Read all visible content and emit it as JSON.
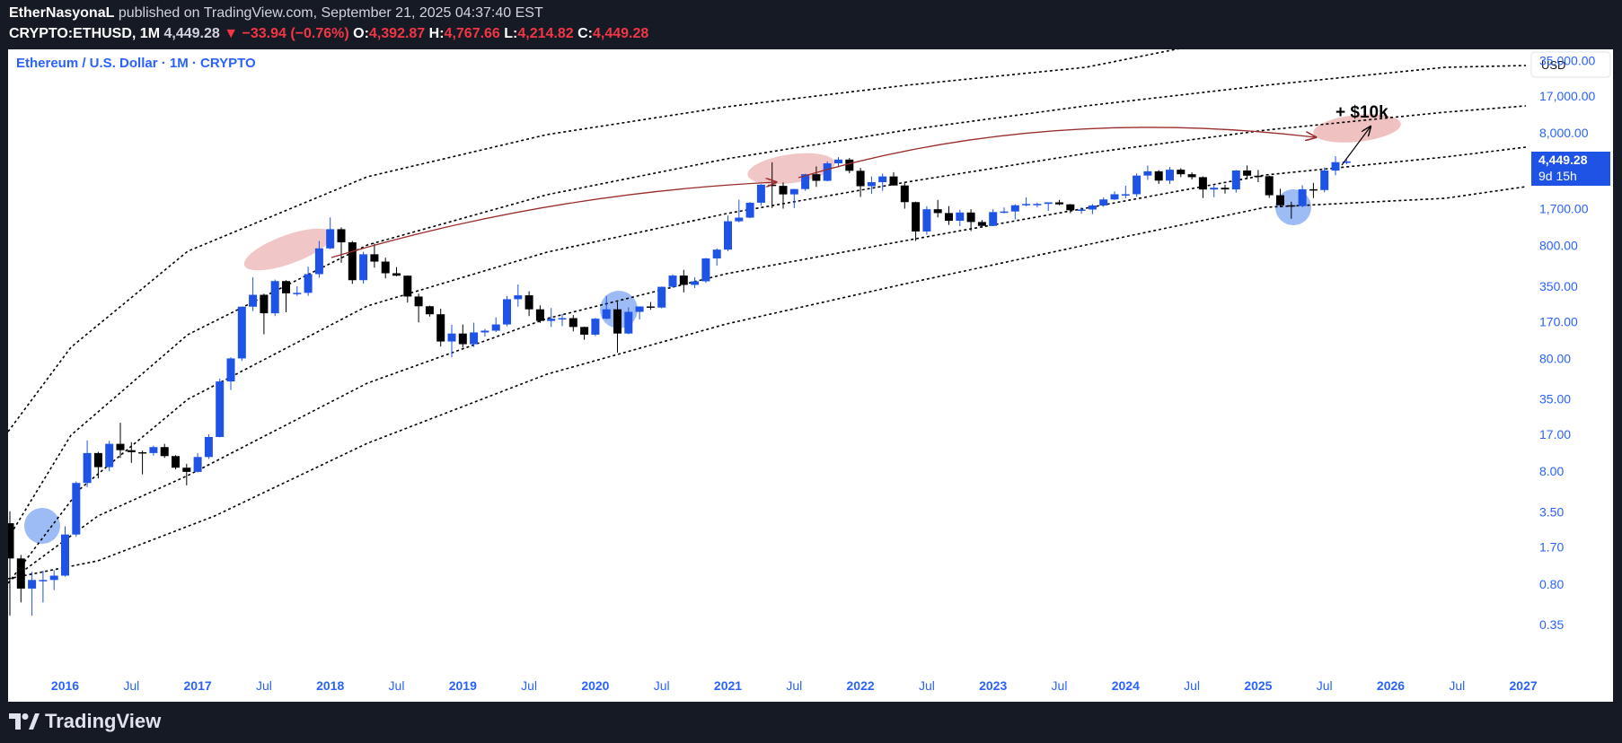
{
  "header": {
    "author": "EtherNasyonaL",
    "published": "published on TradingView.com, September 21, 2025 04:37:40 EST",
    "symbol": "CRYPTO:ETHUSD, 1M",
    "last": "4,449.28",
    "change": "▼ −33.94 (−0.76%)",
    "o_label": "O:",
    "o": "4,392.87",
    "h_label": "H:",
    "h": "4,767.66",
    "l_label": "L:",
    "l": "4,214.82",
    "c_label": "C:",
    "c": "4,449.28"
  },
  "legend_title": "Ethereum / U.S. Dollar · 1M · CRYPTO",
  "currency_button": "USD",
  "price_badge": {
    "price": "4,449.28",
    "countdown": "9d 15h"
  },
  "annotation": "+ $10k",
  "footer": {
    "brand": "TradingView"
  },
  "colors": {
    "up": "#1e53e5",
    "down": "#000000",
    "red_zone": "#e8a0a0",
    "blue_zone": "#5b8def",
    "arc": "#9b2c2c",
    "axis_text": "#2962ff"
  },
  "chart_data": {
    "type": "candlestick",
    "scale": "log",
    "title": "Ethereum / U.S. Dollar · 1M · CRYPTO",
    "y_ticks": [
      "0.35",
      "0.80",
      "1.70",
      "3.50",
      "8.00",
      "17.00",
      "35.00",
      "80.00",
      "170.00",
      "350.00",
      "800.00",
      "1,700.00",
      "4,449.28",
      "8,000.00",
      "17,000.00",
      "35,000.00"
    ],
    "y_tick_values": [
      0.35,
      0.8,
      1.7,
      3.5,
      8,
      17,
      35,
      80,
      170,
      350,
      800,
      1700,
      4449.28,
      8000,
      17000,
      35000
    ],
    "x_ticks": [
      "2016",
      "Jul",
      "2017",
      "Jul",
      "2018",
      "Jul",
      "2019",
      "Jul",
      "2020",
      "Jul",
      "2021",
      "Jul",
      "2022",
      "Jul",
      "2023",
      "Jul",
      "2024",
      "Jul",
      "2025",
      "Jul",
      "2026",
      "Jul",
      "2027"
    ],
    "x_range": [
      "2015-08",
      "2027-01"
    ],
    "last_price": 4449.28,
    "channel_lines": 5,
    "candles": [
      {
        "t": "2015-08",
        "o": 2.77,
        "h": 3.54,
        "l": 0.42,
        "c": 1.35
      },
      {
        "t": "2015-09",
        "o": 1.35,
        "h": 1.45,
        "l": 0.55,
        "c": 0.73
      },
      {
        "t": "2015-10",
        "o": 0.73,
        "h": 1.03,
        "l": 0.42,
        "c": 0.87
      },
      {
        "t": "2015-11",
        "o": 0.87,
        "h": 1.05,
        "l": 0.55,
        "c": 0.87
      },
      {
        "t": "2015-12",
        "o": 0.87,
        "h": 1.06,
        "l": 0.71,
        "c": 0.95
      },
      {
        "t": "2016-01",
        "o": 0.95,
        "h": 2.6,
        "l": 0.93,
        "c": 2.2
      },
      {
        "t": "2016-02",
        "o": 2.2,
        "h": 6.5,
        "l": 2.1,
        "c": 6.3
      },
      {
        "t": "2016-03",
        "o": 6.3,
        "h": 15.0,
        "l": 5.8,
        "c": 11.6
      },
      {
        "t": "2016-04",
        "o": 11.6,
        "h": 11.9,
        "l": 6.9,
        "c": 8.7
      },
      {
        "t": "2016-05",
        "o": 8.7,
        "h": 14.9,
        "l": 8.0,
        "c": 14.0
      },
      {
        "t": "2016-06",
        "o": 14.0,
        "h": 21.5,
        "l": 10.5,
        "c": 12.3
      },
      {
        "t": "2016-07",
        "o": 12.3,
        "h": 14.5,
        "l": 9.5,
        "c": 11.8
      },
      {
        "t": "2016-08",
        "o": 11.8,
        "h": 12.2,
        "l": 7.5,
        "c": 11.6
      },
      {
        "t": "2016-09",
        "o": 11.6,
        "h": 13.5,
        "l": 11.0,
        "c": 13.1
      },
      {
        "t": "2016-10",
        "o": 13.1,
        "h": 14.0,
        "l": 10.5,
        "c": 10.9
      },
      {
        "t": "2016-11",
        "o": 10.9,
        "h": 11.1,
        "l": 8.3,
        "c": 8.6
      },
      {
        "t": "2016-12",
        "o": 8.6,
        "h": 9.3,
        "l": 6.0,
        "c": 7.9
      },
      {
        "t": "2017-01",
        "o": 7.9,
        "h": 11.6,
        "l": 7.8,
        "c": 10.7
      },
      {
        "t": "2017-02",
        "o": 10.7,
        "h": 17.0,
        "l": 10.3,
        "c": 16.1
      },
      {
        "t": "2017-03",
        "o": 16.1,
        "h": 53.0,
        "l": 16.0,
        "c": 50.0
      },
      {
        "t": "2017-04",
        "o": 50.0,
        "h": 82.0,
        "l": 42.0,
        "c": 80.0
      },
      {
        "t": "2017-05",
        "o": 80.0,
        "h": 230.0,
        "l": 76.0,
        "c": 230.0
      },
      {
        "t": "2017-06",
        "o": 230.0,
        "h": 420.0,
        "l": 210.0,
        "c": 293.0
      },
      {
        "t": "2017-07",
        "o": 293.0,
        "h": 300.0,
        "l": 131.0,
        "c": 201.0
      },
      {
        "t": "2017-08",
        "o": 201.0,
        "h": 400.0,
        "l": 190.0,
        "c": 388.0
      },
      {
        "t": "2017-09",
        "o": 388.0,
        "h": 395.0,
        "l": 205.0,
        "c": 302.0
      },
      {
        "t": "2017-10",
        "o": 302.0,
        "h": 350.0,
        "l": 287.0,
        "c": 305.0
      },
      {
        "t": "2017-11",
        "o": 305.0,
        "h": 520.0,
        "l": 287.0,
        "c": 447.0
      },
      {
        "t": "2017-12",
        "o": 447.0,
        "h": 880.0,
        "l": 416.0,
        "c": 756.0
      },
      {
        "t": "2018-01",
        "o": 756.0,
        "h": 1420.0,
        "l": 743.0,
        "c": 1118.0
      },
      {
        "t": "2018-02",
        "o": 1118.0,
        "h": 1161.0,
        "l": 564.0,
        "c": 855.0
      },
      {
        "t": "2018-03",
        "o": 855.0,
        "h": 880.0,
        "l": 366.0,
        "c": 395.0
      },
      {
        "t": "2018-04",
        "o": 395.0,
        "h": 705.0,
        "l": 368.0,
        "c": 670.0
      },
      {
        "t": "2018-05",
        "o": 670.0,
        "h": 835.0,
        "l": 510.0,
        "c": 577.0
      },
      {
        "t": "2018-06",
        "o": 577.0,
        "h": 625.0,
        "l": 410.0,
        "c": 455.0
      },
      {
        "t": "2018-07",
        "o": 455.0,
        "h": 515.0,
        "l": 427.0,
        "c": 433.0
      },
      {
        "t": "2018-08",
        "o": 433.0,
        "h": 435.0,
        "l": 250.0,
        "c": 283.0
      },
      {
        "t": "2018-09",
        "o": 283.0,
        "h": 300.0,
        "l": 167.0,
        "c": 232.0
      },
      {
        "t": "2018-10",
        "o": 232.0,
        "h": 235.0,
        "l": 188.0,
        "c": 197.0
      },
      {
        "t": "2018-11",
        "o": 197.0,
        "h": 221.0,
        "l": 102.0,
        "c": 113.0
      },
      {
        "t": "2018-12",
        "o": 113.0,
        "h": 159.0,
        "l": 82.0,
        "c": 133.0
      },
      {
        "t": "2019-01",
        "o": 133.0,
        "h": 160.0,
        "l": 100.0,
        "c": 107.0
      },
      {
        "t": "2019-02",
        "o": 107.0,
        "h": 166.0,
        "l": 101.0,
        "c": 136.0
      },
      {
        "t": "2019-03",
        "o": 136.0,
        "h": 146.0,
        "l": 125.0,
        "c": 141.0
      },
      {
        "t": "2019-04",
        "o": 141.0,
        "h": 185.0,
        "l": 137.0,
        "c": 160.0
      },
      {
        "t": "2019-05",
        "o": 160.0,
        "h": 285.0,
        "l": 154.0,
        "c": 268.0
      },
      {
        "t": "2019-06",
        "o": 268.0,
        "h": 362.0,
        "l": 230.0,
        "c": 290.0
      },
      {
        "t": "2019-07",
        "o": 290.0,
        "h": 315.0,
        "l": 190.0,
        "c": 218.0
      },
      {
        "t": "2019-08",
        "o": 218.0,
        "h": 236.0,
        "l": 165.0,
        "c": 172.0
      },
      {
        "t": "2019-09",
        "o": 172.0,
        "h": 224.0,
        "l": 152.0,
        "c": 180.0
      },
      {
        "t": "2019-10",
        "o": 180.0,
        "h": 198.0,
        "l": 155.0,
        "c": 182.0
      },
      {
        "t": "2019-11",
        "o": 182.0,
        "h": 194.0,
        "l": 139.0,
        "c": 152.0
      },
      {
        "t": "2019-12",
        "o": 152.0,
        "h": 153.0,
        "l": 117.0,
        "c": 130.0
      },
      {
        "t": "2020-01",
        "o": 130.0,
        "h": 183.0,
        "l": 126.0,
        "c": 180.0
      },
      {
        "t": "2020-02",
        "o": 180.0,
        "h": 288.0,
        "l": 178.0,
        "c": 218.0
      },
      {
        "t": "2020-03",
        "o": 218.0,
        "h": 253.0,
        "l": 90.0,
        "c": 133.0
      },
      {
        "t": "2020-04",
        "o": 133.0,
        "h": 227.0,
        "l": 131.0,
        "c": 207.0
      },
      {
        "t": "2020-05",
        "o": 207.0,
        "h": 227.0,
        "l": 177.0,
        "c": 231.0
      },
      {
        "t": "2020-06",
        "o": 231.0,
        "h": 253.0,
        "l": 216.0,
        "c": 226.0
      },
      {
        "t": "2020-07",
        "o": 226.0,
        "h": 347.0,
        "l": 222.0,
        "c": 345.0
      },
      {
        "t": "2020-08",
        "o": 345.0,
        "h": 445.0,
        "l": 340.0,
        "c": 434.0
      },
      {
        "t": "2020-09",
        "o": 434.0,
        "h": 488.0,
        "l": 308.0,
        "c": 359.0
      },
      {
        "t": "2020-10",
        "o": 359.0,
        "h": 420.0,
        "l": 336.0,
        "c": 386.0
      },
      {
        "t": "2020-11",
        "o": 386.0,
        "h": 622.0,
        "l": 374.0,
        "c": 616.0
      },
      {
        "t": "2020-12",
        "o": 616.0,
        "h": 755.0,
        "l": 531.0,
        "c": 737.0
      },
      {
        "t": "2021-01",
        "o": 737.0,
        "h": 1475.0,
        "l": 714.0,
        "c": 1314.0
      },
      {
        "t": "2021-02",
        "o": 1314.0,
        "h": 2042.0,
        "l": 1284.0,
        "c": 1416.0
      },
      {
        "t": "2021-03",
        "o": 1416.0,
        "h": 1945.0,
        "l": 1400.0,
        "c": 1919.0
      },
      {
        "t": "2021-04",
        "o": 1919.0,
        "h": 2800.0,
        "l": 1810.0,
        "c": 2773.0
      },
      {
        "t": "2021-05",
        "o": 2773.0,
        "h": 4380.0,
        "l": 1720.0,
        "c": 2707.0
      },
      {
        "t": "2021-06",
        "o": 2707.0,
        "h": 2900.0,
        "l": 1700.0,
        "c": 2275.0
      },
      {
        "t": "2021-07",
        "o": 2275.0,
        "h": 2550.0,
        "l": 1718.0,
        "c": 2536.0
      },
      {
        "t": "2021-08",
        "o": 2536.0,
        "h": 3470.0,
        "l": 2450.0,
        "c": 3433.0
      },
      {
        "t": "2021-09",
        "o": 3433.0,
        "h": 4027.0,
        "l": 2652.0,
        "c": 3001.0
      },
      {
        "t": "2021-10",
        "o": 3001.0,
        "h": 4460.0,
        "l": 2970.0,
        "c": 4288.0
      },
      {
        "t": "2021-11",
        "o": 4288.0,
        "h": 4868.0,
        "l": 3963.0,
        "c": 4631.0
      },
      {
        "t": "2021-12",
        "o": 4631.0,
        "h": 4778.0,
        "l": 3503.0,
        "c": 3682.0
      },
      {
        "t": "2022-01",
        "o": 3682.0,
        "h": 3906.0,
        "l": 2159.0,
        "c": 2688.0
      },
      {
        "t": "2022-02",
        "o": 2688.0,
        "h": 3282.0,
        "l": 2300.0,
        "c": 2919.0
      },
      {
        "t": "2022-03",
        "o": 2919.0,
        "h": 3479.0,
        "l": 2450.0,
        "c": 3282.0
      },
      {
        "t": "2022-04",
        "o": 3282.0,
        "h": 3580.0,
        "l": 2718.0,
        "c": 2729.0
      },
      {
        "t": "2022-05",
        "o": 2729.0,
        "h": 2954.0,
        "l": 1700.0,
        "c": 1942.0
      },
      {
        "t": "2022-06",
        "o": 1942.0,
        "h": 1961.0,
        "l": 880.0,
        "c": 1067.0
      },
      {
        "t": "2022-07",
        "o": 1067.0,
        "h": 1785.0,
        "l": 1000.0,
        "c": 1680.0
      },
      {
        "t": "2022-08",
        "o": 1680.0,
        "h": 2030.0,
        "l": 1422.0,
        "c": 1554.0
      },
      {
        "t": "2022-09",
        "o": 1554.0,
        "h": 1790.0,
        "l": 1220.0,
        "c": 1328.0
      },
      {
        "t": "2022-10",
        "o": 1328.0,
        "h": 1663.0,
        "l": 1190.0,
        "c": 1572.0
      },
      {
        "t": "2022-11",
        "o": 1572.0,
        "h": 1680.0,
        "l": 1074.0,
        "c": 1295.0
      },
      {
        "t": "2022-12",
        "o": 1295.0,
        "h": 1350.0,
        "l": 1150.0,
        "c": 1196.0
      },
      {
        "t": "2023-01",
        "o": 1196.0,
        "h": 1680.0,
        "l": 1190.0,
        "c": 1586.0
      },
      {
        "t": "2023-02",
        "o": 1586.0,
        "h": 1742.0,
        "l": 1545.0,
        "c": 1605.0
      },
      {
        "t": "2023-03",
        "o": 1605.0,
        "h": 1857.0,
        "l": 1368.0,
        "c": 1822.0
      },
      {
        "t": "2023-04",
        "o": 1822.0,
        "h": 2141.0,
        "l": 1785.0,
        "c": 1870.0
      },
      {
        "t": "2023-05",
        "o": 1870.0,
        "h": 1928.0,
        "l": 1744.0,
        "c": 1874.0
      },
      {
        "t": "2023-06",
        "o": 1874.0,
        "h": 1930.0,
        "l": 1624.0,
        "c": 1934.0
      },
      {
        "t": "2023-07",
        "o": 1934.0,
        "h": 2029.0,
        "l": 1823.0,
        "c": 1856.0
      },
      {
        "t": "2023-08",
        "o": 1856.0,
        "h": 1870.0,
        "l": 1550.0,
        "c": 1645.0
      },
      {
        "t": "2023-09",
        "o": 1645.0,
        "h": 1750.0,
        "l": 1530.0,
        "c": 1671.0
      },
      {
        "t": "2023-10",
        "o": 1671.0,
        "h": 1865.0,
        "l": 1520.0,
        "c": 1815.0
      },
      {
        "t": "2023-11",
        "o": 1815.0,
        "h": 2136.0,
        "l": 1770.0,
        "c": 2052.0
      },
      {
        "t": "2023-12",
        "o": 2052.0,
        "h": 2415.0,
        "l": 2031.0,
        "c": 2281.0
      },
      {
        "t": "2024-01",
        "o": 2281.0,
        "h": 2715.0,
        "l": 2100.0,
        "c": 2283.0
      },
      {
        "t": "2024-02",
        "o": 2283.0,
        "h": 3487.0,
        "l": 2170.0,
        "c": 3340.0
      },
      {
        "t": "2024-03",
        "o": 3340.0,
        "h": 4095.0,
        "l": 3058.0,
        "c": 3646.0
      },
      {
        "t": "2024-04",
        "o": 3646.0,
        "h": 3730.0,
        "l": 2815.0,
        "c": 3014.0
      },
      {
        "t": "2024-05",
        "o": 3014.0,
        "h": 3975.0,
        "l": 2817.0,
        "c": 3765.0
      },
      {
        "t": "2024-06",
        "o": 3765.0,
        "h": 3887.0,
        "l": 3240.0,
        "c": 3432.0
      },
      {
        "t": "2024-07",
        "o": 3432.0,
        "h": 3563.0,
        "l": 3086.0,
        "c": 3233.0
      },
      {
        "t": "2024-08",
        "o": 3233.0,
        "h": 3282.0,
        "l": 2110.0,
        "c": 2513.0
      },
      {
        "t": "2024-09",
        "o": 2513.0,
        "h": 2728.0,
        "l": 2150.0,
        "c": 2604.0
      },
      {
        "t": "2024-10",
        "o": 2604.0,
        "h": 2770.0,
        "l": 2310.0,
        "c": 2517.0
      },
      {
        "t": "2024-11",
        "o": 2517.0,
        "h": 3750.0,
        "l": 2357.0,
        "c": 3705.0
      },
      {
        "t": "2024-12",
        "o": 3705.0,
        "h": 4109.0,
        "l": 3100.0,
        "c": 3333.0
      },
      {
        "t": "2025-01",
        "o": 3333.0,
        "h": 3745.0,
        "l": 2920.0,
        "c": 3298.0
      },
      {
        "t": "2025-02",
        "o": 3298.0,
        "h": 3335.0,
        "l": 2120.0,
        "c": 2237.0
      },
      {
        "t": "2025-03",
        "o": 2237.0,
        "h": 2550.0,
        "l": 1750.0,
        "c": 1822.0
      },
      {
        "t": "2025-04",
        "o": 1822.0,
        "h": 1960.0,
        "l": 1385.0,
        "c": 1794.0
      },
      {
        "t": "2025-05",
        "o": 1794.0,
        "h": 2740.0,
        "l": 1750.0,
        "c": 2527.0
      },
      {
        "t": "2025-06",
        "o": 2527.0,
        "h": 2880.0,
        "l": 2112.0,
        "c": 2486.0
      },
      {
        "t": "2025-07",
        "o": 2486.0,
        "h": 3940.0,
        "l": 2372.0,
        "c": 3705.0
      },
      {
        "t": "2025-08",
        "o": 3705.0,
        "h": 4956.0,
        "l": 3355.0,
        "c": 4392.0
      },
      {
        "t": "2025-09",
        "o": 4392.87,
        "h": 4767.66,
        "l": 4214.82,
        "c": 4449.28
      }
    ]
  }
}
